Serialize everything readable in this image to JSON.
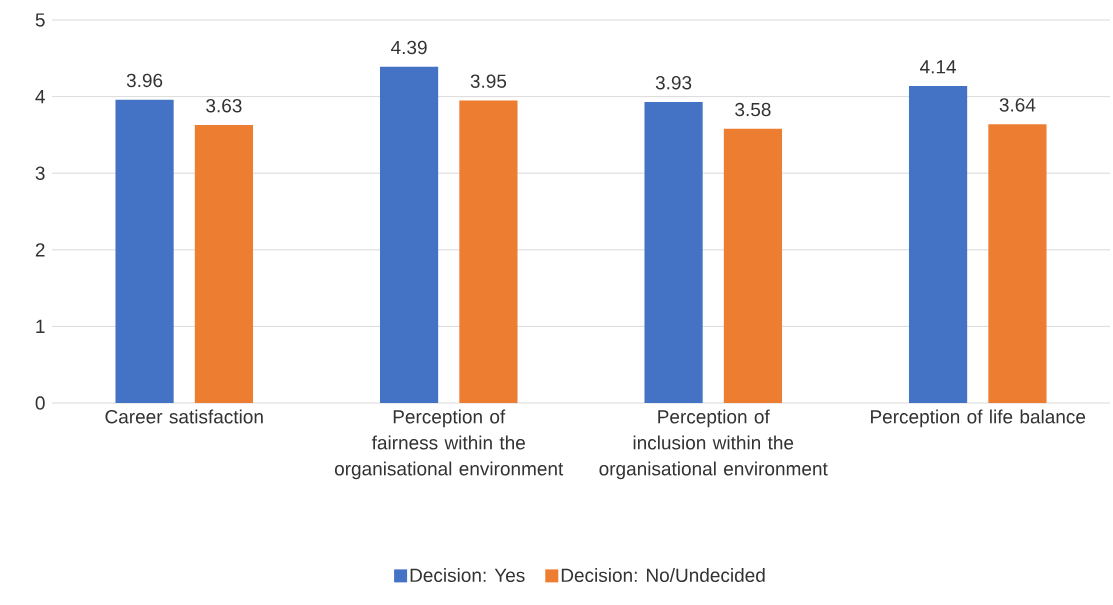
{
  "chart_data": {
    "type": "bar",
    "categories": [
      "Career satisfaction",
      "Perception of fairness within the organisational environment",
      "Perception of inclusion within the organisational environment",
      "Perception of life balance"
    ],
    "series": [
      {
        "name": "Decision: Yes",
        "color": "#4472c4",
        "values": [
          3.96,
          4.39,
          3.93,
          4.14
        ]
      },
      {
        "name": "Decision: No/Undecided",
        "color": "#ed7d31",
        "values": [
          3.63,
          3.95,
          3.58,
          3.64
        ]
      }
    ],
    "ylim": [
      0,
      5
    ],
    "yticks": [
      0,
      1,
      2,
      3,
      4,
      5
    ],
    "grid": "y",
    "legend": "bottom",
    "data_labels": true
  }
}
